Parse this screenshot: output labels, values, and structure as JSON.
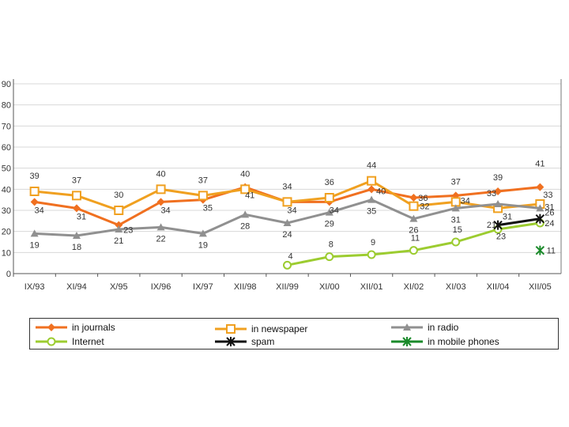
{
  "chart_data": {
    "type": "line",
    "categories": [
      "IX/93",
      "XI/94",
      "X/95",
      "IX/96",
      "IX/97",
      "XII/98",
      "XII/99",
      "XI/00",
      "XII/01",
      "XI/02",
      "XI/03",
      "XII/04",
      "XII/05"
    ],
    "y_ticks": [
      "0",
      "10",
      "20",
      "30",
      "40",
      "50",
      "60",
      "70",
      "80",
      "90"
    ],
    "ylim": [
      0,
      90
    ],
    "series": [
      {
        "name": "in journals",
        "color": "#f07020",
        "marker": "diamond",
        "values": [
          34,
          31,
          23,
          34,
          35,
          41,
          34,
          34,
          40,
          36,
          37,
          39,
          41
        ],
        "labels": [
          "34",
          "31",
          "23",
          "34",
          "35",
          "41",
          "34",
          "34",
          "40",
          "36",
          "37",
          "39",
          "41"
        ]
      },
      {
        "name": "in newspaper",
        "color": "#f0a020",
        "marker": "square",
        "values": [
          39,
          37,
          30,
          40,
          37,
          40,
          34,
          36,
          44,
          32,
          34,
          31,
          33
        ],
        "labels": [
          "39",
          "37",
          "30",
          "40",
          "37",
          "40",
          "34",
          "36",
          "44",
          "32",
          "34",
          "31",
          "33"
        ]
      },
      {
        "name": "in radio",
        "color": "#909090",
        "marker": "triangle",
        "values": [
          19,
          18,
          21,
          22,
          19,
          28,
          24,
          29,
          35,
          26,
          31,
          33,
          31
        ],
        "labels": [
          "19",
          "18",
          "21",
          "22",
          "19",
          "28",
          "24",
          "29",
          "35",
          "26",
          "31",
          "33",
          "31"
        ]
      },
      {
        "name": "Internet",
        "color": "#9ccc30",
        "marker": "circle",
        "values": [
          null,
          null,
          null,
          null,
          null,
          null,
          4,
          8,
          9,
          11,
          15,
          21,
          24
        ],
        "labels": [
          "",
          "",
          "",
          "",
          "",
          "",
          "4",
          "8",
          "9",
          "11",
          "15",
          "21",
          "24"
        ]
      },
      {
        "name": "spam",
        "color": "#111111",
        "marker": "star",
        "values": [
          null,
          null,
          null,
          null,
          null,
          null,
          null,
          null,
          null,
          null,
          null,
          23,
          26
        ],
        "labels": [
          "",
          "",
          "",
          "",
          "",
          "",
          "",
          "",
          "",
          "",
          "",
          "23",
          "26"
        ]
      },
      {
        "name": "in mobile phones",
        "color": "#1a8a2a",
        "marker": "star",
        "values": [
          null,
          null,
          null,
          null,
          null,
          null,
          null,
          null,
          null,
          null,
          null,
          null,
          11
        ],
        "labels": [
          "",
          "",
          "",
          "",
          "",
          "",
          "",
          "",
          "",
          "",
          "",
          "",
          "11"
        ]
      }
    ]
  },
  "legend": [
    {
      "label": "in journals"
    },
    {
      "label": "in newspaper"
    },
    {
      "label": "in radio"
    },
    {
      "label": "Internet"
    },
    {
      "label": "spam"
    },
    {
      "label": "in mobile phones"
    }
  ]
}
